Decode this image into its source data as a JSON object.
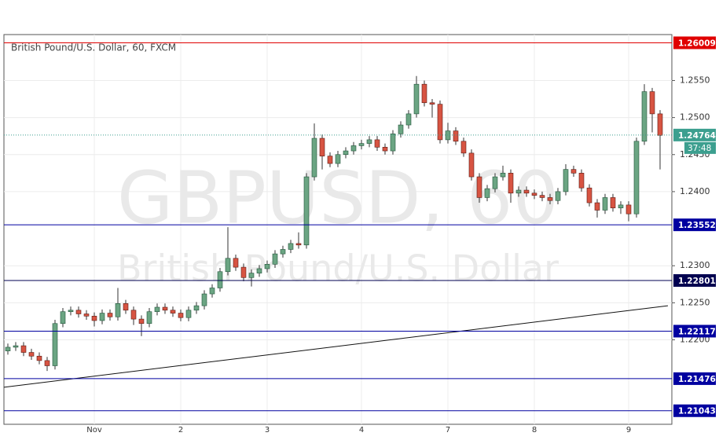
{
  "chart_data": {
    "type": "candlestick",
    "title": "British Pound/U.S. Dollar, 60, FXCM",
    "watermark": [
      "GBPUSD, 60",
      "British Pound/U.S. Dollar"
    ],
    "categories": [
      null,
      null,
      null,
      null,
      null,
      null,
      null,
      null,
      null,
      null,
      null,
      "Nov",
      null,
      null,
      null,
      null,
      null,
      null,
      null,
      null,
      null,
      null,
      "2",
      null,
      null,
      null,
      null,
      null,
      null,
      null,
      null,
      null,
      null,
      "3",
      null,
      null,
      null,
      null,
      null,
      null,
      null,
      null,
      null,
      null,
      null,
      "4",
      null,
      null,
      null,
      null,
      null,
      null,
      null,
      null,
      null,
      null,
      "7",
      null,
      null,
      null,
      null,
      null,
      null,
      null,
      null,
      null,
      null,
      "8",
      null,
      null,
      null,
      null,
      null,
      null,
      null,
      null,
      null,
      null,
      null,
      "9",
      null,
      null,
      null,
      null
    ],
    "open": [
      1.2185,
      1.219,
      1.2192,
      1.2183,
      1.2178,
      1.2172,
      1.2165,
      1.2222,
      1.2238,
      1.224,
      1.2235,
      1.2232,
      1.2226,
      1.2236,
      1.2231,
      1.2249,
      1.224,
      1.2228,
      1.2222,
      1.2238,
      1.2244,
      1.224,
      1.2236,
      1.223,
      1.224,
      1.2246,
      1.2262,
      1.227,
      1.2292,
      1.231,
      1.2298,
      1.2284,
      1.229,
      1.2296,
      1.2302,
      1.2316,
      1.2322,
      1.233,
      1.2328,
      1.242,
      1.2472,
      1.2448,
      1.2438,
      1.245,
      1.2455,
      1.2462,
      1.2465,
      1.247,
      1.246,
      1.2455,
      1.2478,
      1.249,
      1.2505,
      1.2545,
      1.252,
      1.2518,
      1.247,
      1.2482,
      1.2468,
      1.2452,
      1.242,
      1.2392,
      1.2404,
      1.242,
      1.2425,
      1.2398,
      1.2402,
      1.2398,
      1.2395,
      1.2392,
      1.2388,
      1.24,
      1.243,
      1.2425,
      1.2405,
      1.2385,
      1.2375,
      1.2392,
      1.2378,
      1.2382,
      1.237,
      1.2468,
      1.2535,
      1.2505
    ],
    "high": [
      1.2195,
      1.2197,
      1.2197,
      1.2188,
      1.2183,
      1.2177,
      1.2227,
      1.2243,
      1.2245,
      1.2245,
      1.224,
      1.2237,
      1.2241,
      1.2241,
      1.227,
      1.2254,
      1.2245,
      1.2233,
      1.2243,
      1.2249,
      1.2249,
      1.2245,
      1.2241,
      1.2245,
      1.2251,
      1.2267,
      1.2275,
      1.2297,
      1.2352,
      1.2315,
      1.2303,
      1.2295,
      1.2301,
      1.2307,
      1.2321,
      1.2327,
      1.2335,
      1.2345,
      1.2425,
      1.2492,
      1.2477,
      1.2453,
      1.2455,
      1.246,
      1.2467,
      1.247,
      1.2475,
      1.2475,
      1.2465,
      1.2483,
      1.2495,
      1.251,
      1.2556,
      1.255,
      1.2525,
      1.2523,
      1.2493,
      1.2487,
      1.2473,
      1.2457,
      1.2425,
      1.2409,
      1.2425,
      1.2435,
      1.243,
      1.2407,
      1.2407,
      1.2403,
      1.24,
      1.2397,
      1.2405,
      1.2437,
      1.2435,
      1.243,
      1.241,
      1.239,
      1.2397,
      1.2397,
      1.2387,
      1.2387,
      1.2473,
      1.2545,
      1.254,
      1.251
    ],
    "low": [
      1.218,
      1.2185,
      1.2178,
      1.2173,
      1.2167,
      1.2158,
      1.216,
      1.2217,
      1.2233,
      1.223,
      1.2227,
      1.2218,
      1.2221,
      1.2226,
      1.2226,
      1.2235,
      1.222,
      1.2205,
      1.2217,
      1.2233,
      1.2235,
      1.2231,
      1.2225,
      1.2225,
      1.2235,
      1.2241,
      1.2257,
      1.2265,
      1.2287,
      1.2293,
      1.2279,
      1.2272,
      1.2285,
      1.2291,
      1.2297,
      1.2311,
      1.2317,
      1.2323,
      1.2323,
      1.2415,
      1.243,
      1.2433,
      1.2433,
      1.2445,
      1.245,
      1.2457,
      1.246,
      1.2455,
      1.245,
      1.245,
      1.2473,
      1.2485,
      1.25,
      1.2515,
      1.25,
      1.2465,
      1.2465,
      1.2463,
      1.2447,
      1.2415,
      1.2385,
      1.2387,
      1.2399,
      1.2415,
      1.2385,
      1.2393,
      1.2393,
      1.239,
      1.2387,
      1.2383,
      1.2383,
      1.2395,
      1.242,
      1.24,
      1.238,
      1.2365,
      1.237,
      1.2373,
      1.237,
      1.236,
      1.2365,
      1.2463,
      1.248,
      1.243
    ],
    "close": [
      1.219,
      1.2192,
      1.2183,
      1.2178,
      1.2172,
      1.2165,
      1.2222,
      1.2238,
      1.224,
      1.2235,
      1.2232,
      1.2226,
      1.2236,
      1.2231,
      1.2249,
      1.224,
      1.2228,
      1.2222,
      1.2238,
      1.2244,
      1.224,
      1.2236,
      1.223,
      1.224,
      1.2246,
      1.2262,
      1.227,
      1.2292,
      1.231,
      1.2298,
      1.2284,
      1.229,
      1.2296,
      1.2302,
      1.2316,
      1.2322,
      1.233,
      1.2328,
      1.242,
      1.2472,
      1.2448,
      1.2438,
      1.245,
      1.2455,
      1.2462,
      1.2465,
      1.247,
      1.246,
      1.2455,
      1.2478,
      1.249,
      1.2505,
      1.2545,
      1.252,
      1.2518,
      1.247,
      1.2482,
      1.2468,
      1.2452,
      1.242,
      1.2392,
      1.2404,
      1.242,
      1.2425,
      1.2398,
      1.2402,
      1.2398,
      1.2395,
      1.2392,
      1.2388,
      1.24,
      1.243,
      1.2425,
      1.2405,
      1.2385,
      1.2375,
      1.2392,
      1.2378,
      1.2382,
      1.237,
      1.2468,
      1.2535,
      1.2505,
      1.2476
    ],
    "up_color": "#6ba583",
    "down_color": "#d75442",
    "ylim": [
      1.2086,
      1.2612
    ],
    "yticks": [
      {
        "value": 1.22,
        "label": "1.2200"
      },
      {
        "value": 1.225,
        "label": "1.2250"
      },
      {
        "value": 1.23,
        "label": "1.2300"
      },
      {
        "value": 1.24,
        "label": "1.2400"
      },
      {
        "value": 1.245,
        "label": "1.2450"
      },
      {
        "value": 1.25,
        "label": "1.2500"
      },
      {
        "value": 1.255,
        "label": "1.2550"
      }
    ],
    "grid": true,
    "levels": [
      {
        "value": 1.26009,
        "color": "#e00000"
      },
      {
        "value": 1.23552,
        "color": "#0000a0"
      },
      {
        "value": 1.22801,
        "color": "#000050"
      },
      {
        "value": 1.22117,
        "color": "#0000a0"
      },
      {
        "value": 1.21476,
        "color": "#0000a0"
      },
      {
        "value": 1.21043,
        "color": "#0000a0"
      }
    ],
    "current": {
      "value": 1.24764,
      "color": "#3c9f8f"
    },
    "countdown": "37:48",
    "trendline": [
      1.2136,
      1.2246
    ]
  }
}
